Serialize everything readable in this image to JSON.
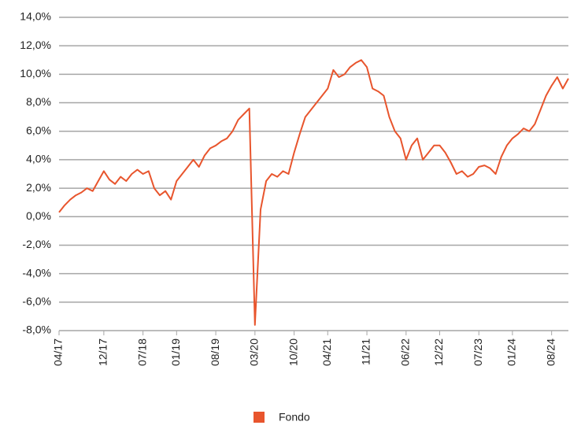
{
  "chart_data": {
    "type": "line",
    "x": [
      "04/17",
      "05/17",
      "06/17",
      "07/17",
      "08/17",
      "09/17",
      "10/17",
      "11/17",
      "12/17",
      "01/18",
      "02/18",
      "03/18",
      "04/18",
      "05/18",
      "06/18",
      "07/18",
      "08/18",
      "09/18",
      "10/18",
      "11/18",
      "12/18",
      "01/19",
      "02/19",
      "03/19",
      "04/19",
      "05/19",
      "06/19",
      "07/19",
      "08/19",
      "09/19",
      "10/19",
      "11/19",
      "12/19",
      "01/20",
      "02/20",
      "03/20",
      "04/20",
      "05/20",
      "06/20",
      "07/20",
      "08/20",
      "09/20",
      "10/20",
      "11/20",
      "12/20",
      "01/21",
      "02/21",
      "03/21",
      "04/21",
      "05/21",
      "06/21",
      "07/21",
      "08/21",
      "09/21",
      "10/21",
      "11/21",
      "12/21",
      "01/22",
      "02/22",
      "03/22",
      "04/22",
      "05/22",
      "06/22",
      "07/22",
      "08/22",
      "09/22",
      "10/22",
      "11/22",
      "12/22",
      "01/23",
      "02/23",
      "03/23",
      "04/23",
      "05/23",
      "06/23",
      "07/23",
      "08/23",
      "09/23",
      "10/23",
      "11/23",
      "12/23",
      "01/24",
      "02/24",
      "03/24",
      "04/24",
      "05/24",
      "06/24",
      "07/24",
      "08/24",
      "09/24",
      "10/24",
      "11/24"
    ],
    "series": [
      {
        "name": "Fondo",
        "color": "#e8552d",
        "values": [
          0.3,
          0.8,
          1.2,
          1.5,
          1.7,
          2.0,
          1.8,
          2.5,
          3.2,
          2.6,
          2.3,
          2.8,
          2.5,
          3.0,
          3.3,
          3.0,
          3.2,
          2.0,
          1.5,
          1.8,
          1.2,
          2.5,
          3.0,
          3.5,
          4.0,
          3.5,
          4.3,
          4.8,
          5.0,
          5.3,
          5.5,
          6.0,
          6.8,
          7.2,
          7.6,
          -7.6,
          0.5,
          2.5,
          3.0,
          2.8,
          3.2,
          3.0,
          4.5,
          5.8,
          7.0,
          7.5,
          8.0,
          8.5,
          9.0,
          10.3,
          9.8,
          10.0,
          10.5,
          10.8,
          11.0,
          10.5,
          9.0,
          8.8,
          8.5,
          7.0,
          6.0,
          5.5,
          4.0,
          5.0,
          5.5,
          4.0,
          4.5,
          5.0,
          5.0,
          4.5,
          3.8,
          3.0,
          3.2,
          2.8,
          3.0,
          3.5,
          3.6,
          3.4,
          3.0,
          4.2,
          5.0,
          5.5,
          5.8,
          6.2,
          6.0,
          6.5,
          7.5,
          8.5,
          9.2,
          9.8,
          9.0,
          9.7
        ]
      }
    ],
    "xticks": [
      "04/17",
      "12/17",
      "07/18",
      "01/19",
      "08/19",
      "03/20",
      "10/20",
      "04/21",
      "11/21",
      "06/22",
      "12/22",
      "07/23",
      "01/24",
      "08/24"
    ],
    "ylim": [
      -8,
      14
    ],
    "yticks": [
      {
        "value": -8,
        "label": "-8,0%"
      },
      {
        "value": -6,
        "label": "-6,0%"
      },
      {
        "value": -4,
        "label": "-4,0%"
      },
      {
        "value": -2,
        "label": "-2,0%"
      },
      {
        "value": 0,
        "label": "0,0%"
      },
      {
        "value": 2,
        "label": "2,0%"
      },
      {
        "value": 4,
        "label": "4,0%"
      },
      {
        "value": 6,
        "label": "6,0%"
      },
      {
        "value": 8,
        "label": "8,0%"
      },
      {
        "value": 10,
        "label": "10,0%"
      },
      {
        "value": 12,
        "label": "12,0%"
      },
      {
        "value": 14,
        "label": "14,0%"
      }
    ],
    "grid": true,
    "legend": "bottom"
  }
}
